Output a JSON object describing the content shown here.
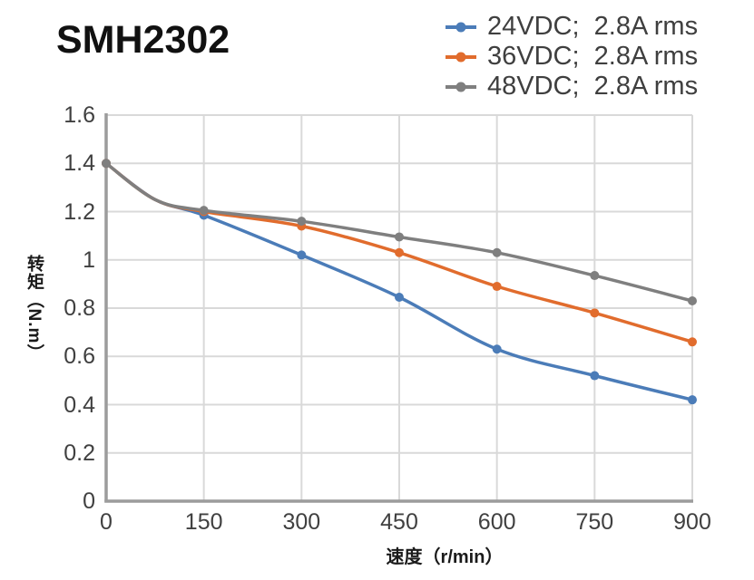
{
  "title": "SMH2302",
  "chart_data": {
    "type": "line",
    "title": "SMH2302",
    "xlabel": "速度（r/min）",
    "ylabel": "转矩（N.m）",
    "xlim": [
      0,
      900
    ],
    "ylim": [
      0,
      1.6
    ],
    "x_tick_labels": [
      "0",
      "150",
      "300",
      "450",
      "600",
      "750",
      "900"
    ],
    "y_tick_labels": [
      "0",
      "0.2",
      "0.4",
      "0.6",
      "0.8",
      "1",
      "1.2",
      "1.4",
      "1.6"
    ],
    "grid": true,
    "legend_position": "top-right",
    "x": [
      0,
      75,
      150,
      300,
      450,
      600,
      750,
      900
    ],
    "marker_interval_x": 150,
    "series": [
      {
        "label": "24VDC;  2.8A rms",
        "color": "#4B7CB8",
        "values": [
          1.4,
          1.25,
          1.185,
          1.02,
          0.845,
          0.63,
          0.52,
          0.42
        ]
      },
      {
        "label": "36VDC;  2.8A rms",
        "color": "#E16C2D",
        "values": [
          1.4,
          1.25,
          1.2,
          1.14,
          1.03,
          0.89,
          0.78,
          0.66
        ]
      },
      {
        "label": "48VDC;  2.8A rms",
        "color": "#7F7F7F",
        "values": [
          1.4,
          1.25,
          1.205,
          1.16,
          1.095,
          1.03,
          0.935,
          0.83
        ]
      }
    ],
    "grid_color": "#D9D9D9",
    "axis_color": "#9C9C9C",
    "tick_text_color": "#404040"
  }
}
